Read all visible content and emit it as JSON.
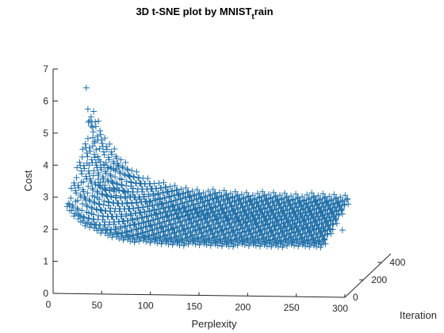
{
  "chart_data": {
    "type": "scatter",
    "title_main": "3D t-SNE plot by MNIST",
    "title_sub": "t",
    "title_tail": "rain",
    "xlabel": "Perplexity",
    "ylabel": "Cost",
    "zlabel": "Iteration",
    "xlim": [
      0,
      300
    ],
    "ylim": [
      0,
      7
    ],
    "zlim": [
      0,
      500
    ],
    "xticks": [
      0,
      50,
      100,
      150,
      200,
      250,
      300
    ],
    "yticks": [
      0,
      1,
      2,
      3,
      4,
      5,
      6,
      7
    ],
    "zticks": [
      0,
      200,
      400
    ],
    "marker": "+",
    "marker_color": "#1f6fa8",
    "axis_color": "#262626",
    "grid": false,
    "series_curves": [
      {
        "z": 500,
        "perplexity_range": [
          13,
          300
        ],
        "cost_start": 6.25,
        "cost_end": 1.72
      },
      {
        "z": 400,
        "perplexity_range": [
          13,
          300
        ],
        "cost_start": 5.3,
        "cost_end": 1.68
      },
      {
        "z": 300,
        "perplexity_range": [
          13,
          300
        ],
        "cost_start": 4.8,
        "cost_end": 1.65
      },
      {
        "z": 200,
        "perplexity_range": [
          13,
          300
        ],
        "cost_start": 4.2,
        "cost_end": 1.6
      },
      {
        "z": 100,
        "perplexity_range": [
          13,
          300
        ],
        "cost_start": 3.6,
        "cost_end": 1.55
      }
    ],
    "points": [
      [
        13,
        6.25,
        500
      ],
      [
        15,
        5.6,
        480
      ],
      [
        17,
        5.25,
        460
      ],
      [
        19,
        5.1,
        440
      ],
      [
        21,
        4.75,
        420
      ],
      [
        23,
        4.6,
        400
      ],
      [
        25,
        4.4,
        380
      ],
      [
        27,
        4.2,
        360
      ],
      [
        30,
        4.05,
        340
      ],
      [
        34,
        3.95,
        320
      ],
      [
        38,
        3.9,
        300
      ],
      [
        42,
        3.88,
        280
      ],
      [
        45,
        3.86,
        260
      ],
      [
        48,
        3.9,
        240
      ],
      [
        30,
        3.4,
        220
      ],
      [
        34,
        3.3,
        210
      ],
      [
        38,
        3.25,
        200
      ],
      [
        42,
        3.25,
        190
      ],
      [
        46,
        3.3,
        180
      ],
      [
        50,
        3.35,
        170
      ],
      [
        55,
        3.05,
        400
      ],
      [
        60,
        2.95,
        400
      ],
      [
        70,
        2.85,
        400
      ],
      [
        80,
        2.75,
        400
      ],
      [
        90,
        2.68,
        400
      ],
      [
        100,
        2.6,
        400
      ],
      [
        110,
        2.52,
        400
      ],
      [
        120,
        2.45,
        400
      ],
      [
        130,
        2.4,
        400
      ],
      [
        140,
        2.35,
        400
      ],
      [
        150,
        2.3,
        400
      ],
      [
        160,
        2.25,
        400
      ],
      [
        170,
        2.2,
        400
      ],
      [
        180,
        2.15,
        400
      ],
      [
        190,
        2.1,
        400
      ],
      [
        200,
        2.06,
        400
      ],
      [
        210,
        2.02,
        400
      ],
      [
        220,
        2.0,
        400
      ],
      [
        230,
        1.97,
        400
      ],
      [
        240,
        1.95,
        400
      ],
      [
        250,
        1.93,
        400
      ],
      [
        260,
        1.92,
        400
      ],
      [
        270,
        1.9,
        400
      ],
      [
        280,
        1.88,
        400
      ]
    ]
  }
}
